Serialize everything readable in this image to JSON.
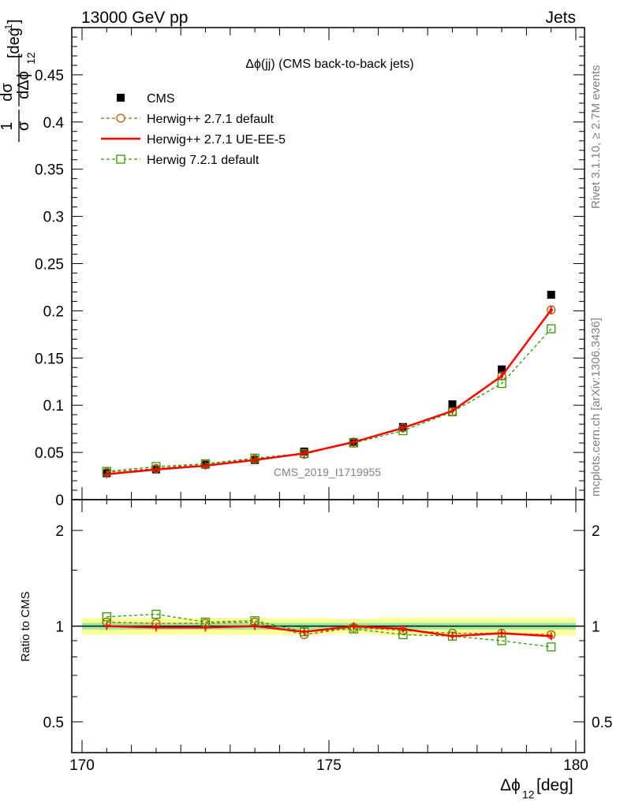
{
  "header": {
    "left": "13000 GeV pp",
    "right": "Jets"
  },
  "side_labels": {
    "rivet": "Rivet 3.1.10, ≥ 2.7M events",
    "mcplots": "mcplots.cern.ch [arXiv:1306.3436]"
  },
  "analysis_tag": "CMS_2019_I1719955",
  "chart_data": [
    {
      "type": "line",
      "panel": "main",
      "title": "Δϕ(jj) (CMS back-to-back jets)",
      "ylabel": {
        "frac_num": "1",
        "frac_den": "σ",
        "deriv_num": "dσ",
        "deriv_den": "dΔϕ",
        "deriv_den_sub": "12",
        "unit": "[deg",
        "unit_sup": "-1",
        "unit_close": "]"
      },
      "xlim": [
        170,
        180
      ],
      "ylim": [
        0,
        0.5
      ],
      "yticks": [
        0,
        0.05,
        0.1,
        0.15,
        0.2,
        0.25,
        0.3,
        0.35,
        0.4,
        0.45
      ],
      "ytick_labels": [
        "0",
        "0.05",
        "0.1",
        "0.15",
        "0.2",
        "0.25",
        "0.3",
        "0.35",
        "0.4",
        "0.45"
      ],
      "legend_position": "top-left",
      "x": [
        170.5,
        171.5,
        172.5,
        173.5,
        174.5,
        175.5,
        176.5,
        177.5,
        178.5,
        179.5
      ],
      "series": [
        {
          "name": "CMS",
          "style": "data",
          "color": "#000000",
          "values": [
            0.028,
            0.032,
            0.037,
            0.042,
            0.051,
            0.061,
            0.077,
            0.101,
            0.138,
            0.217
          ]
        },
        {
          "name": "Herwig++ 2.7.1 default",
          "style": "circle-dashed",
          "color": "#b35900",
          "values": [
            0.029,
            0.033,
            0.038,
            0.043,
            0.048,
            0.061,
            0.076,
            0.093,
            0.131,
            0.201
          ]
        },
        {
          "name": "Herwig++ 2.7.1 UE-EE-5",
          "style": "solid",
          "color": "#ff0000",
          "values": [
            0.027,
            0.032,
            0.036,
            0.042,
            0.049,
            0.061,
            0.076,
            0.094,
            0.131,
            0.201
          ]
        },
        {
          "name": "Herwig 7.2.1 default",
          "style": "square-dashed",
          "color": "#339900",
          "values": [
            0.03,
            0.035,
            0.038,
            0.044,
            0.049,
            0.06,
            0.073,
            0.093,
            0.123,
            0.181
          ]
        }
      ]
    },
    {
      "type": "line",
      "panel": "ratio",
      "ylabel": "Ratio to CMS",
      "xlabel": {
        "main": "Δϕ",
        "sub": "12",
        "unit": " [deg]"
      },
      "xlim": [
        170,
        180
      ],
      "xticks": [
        170,
        175,
        180
      ],
      "xtick_labels": [
        "170",
        "175",
        "180"
      ],
      "ylim": [
        0.4,
        2.5
      ],
      "yscale": "log",
      "yticks": [
        0.5,
        1,
        2
      ],
      "ytick_labels": [
        "0.5",
        "1",
        "2"
      ],
      "x": [
        170.5,
        171.5,
        172.5,
        173.5,
        174.5,
        175.5,
        176.5,
        177.5,
        178.5,
        179.5
      ],
      "band_inner": [
        0.025,
        0.025,
        0.025,
        0.025,
        0.025,
        0.025,
        0.025,
        0.025,
        0.025,
        0.025
      ],
      "band_outer": [
        0.06,
        0.06,
        0.06,
        0.06,
        0.06,
        0.055,
        0.065,
        0.065,
        0.065,
        0.065
      ],
      "series": [
        {
          "name": "Herwig++ 2.7.1 default",
          "style": "circle-dashed",
          "color": "#b35900",
          "values": [
            1.03,
            1.02,
            1.02,
            1.03,
            0.94,
            0.99,
            0.97,
            0.95,
            0.95,
            0.94
          ]
        },
        {
          "name": "Herwig++ 2.7.1 UE-EE-5",
          "style": "solid",
          "color": "#ff0000",
          "values": [
            1.0,
            0.99,
            0.99,
            1.0,
            0.96,
            1.0,
            0.98,
            0.93,
            0.95,
            0.93
          ]
        },
        {
          "name": "Herwig 7.2.1 default",
          "style": "square-dashed",
          "color": "#339900",
          "values": [
            1.07,
            1.09,
            1.03,
            1.04,
            0.96,
            0.98,
            0.94,
            0.93,
            0.9,
            0.86
          ]
        }
      ]
    }
  ]
}
